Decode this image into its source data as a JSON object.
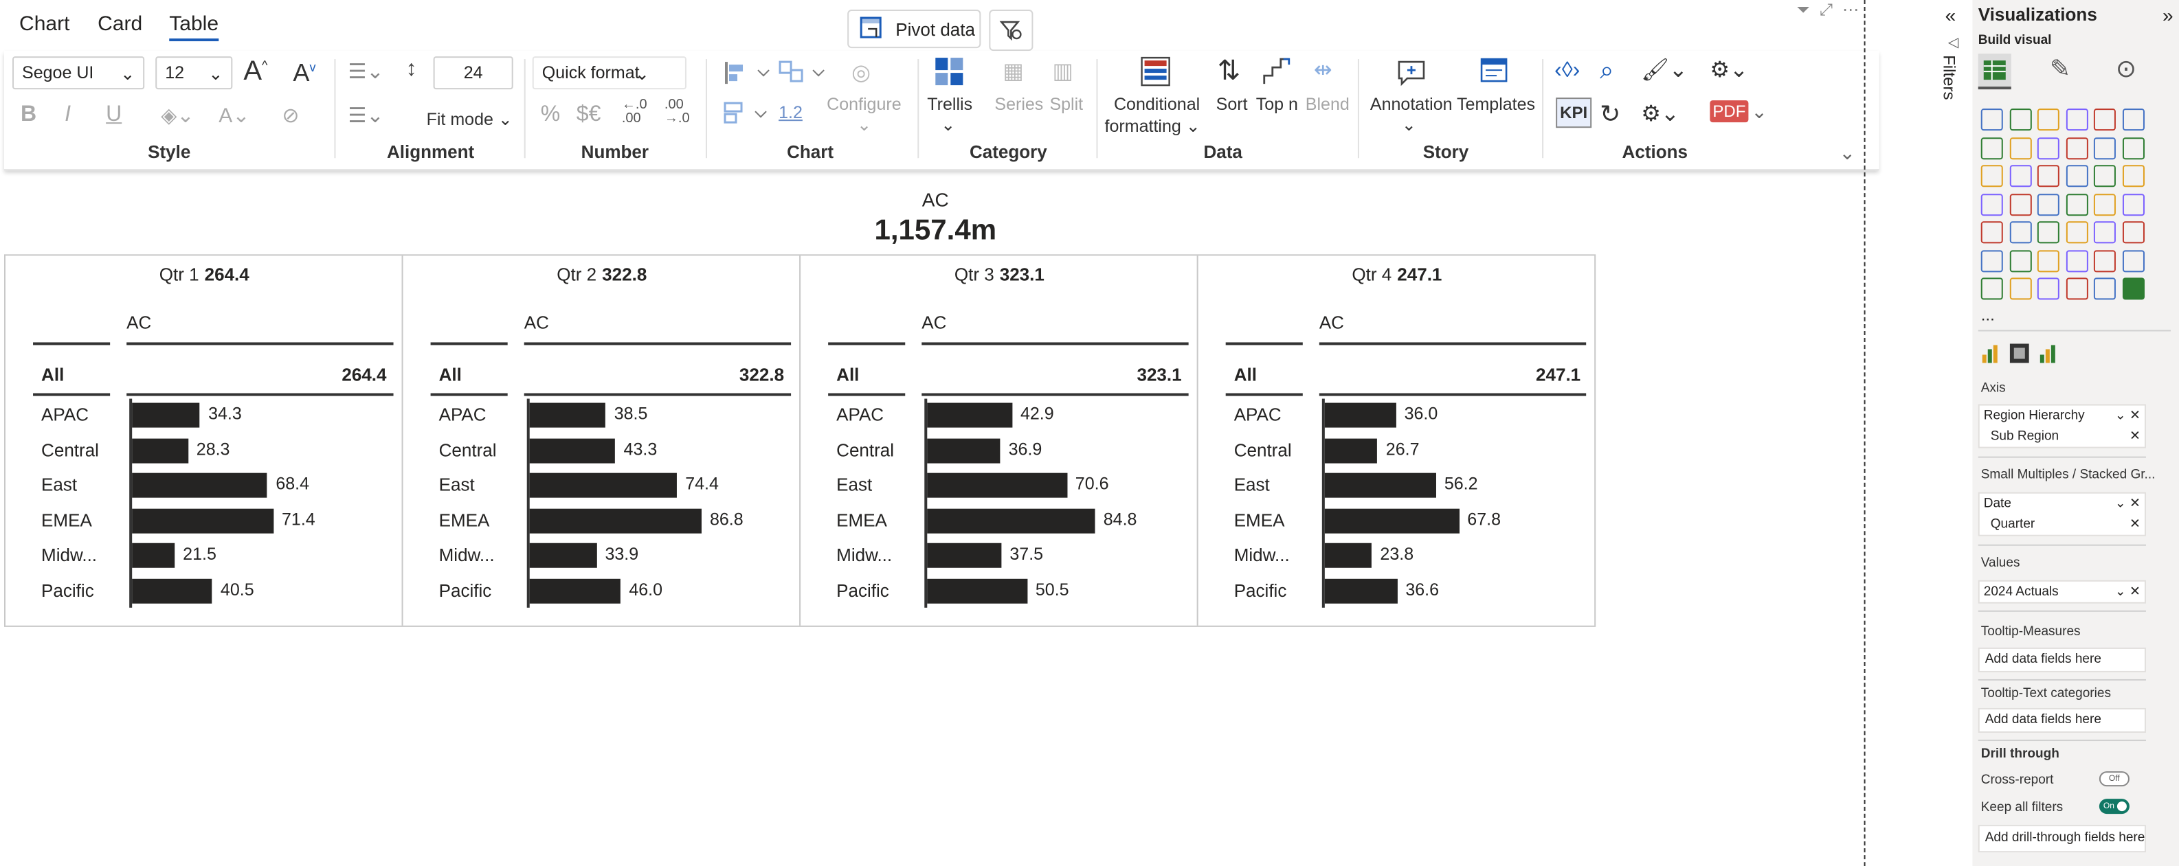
{
  "top": {
    "tabs": [
      "Chart",
      "Card",
      "Table"
    ],
    "active_tab": "Table",
    "pivot_label": "Pivot data"
  },
  "ribbon": {
    "font_family": "Segoe UI",
    "font_size": "12",
    "row_height": "24",
    "quick_format": "Quick format",
    "fit_mode": "Fit mode",
    "configure": "Configure",
    "series": "Series",
    "split": "Split",
    "trellis": "Trellis",
    "conditional_formatting": [
      "Conditional",
      "formatting"
    ],
    "sort": "Sort",
    "topn": "Top n",
    "blend": "Blend",
    "annotation": "Annotation",
    "templates": "Templates",
    "kpi": "KPI",
    "number_formats": [
      "%",
      "$€",
      "←.0 .00",
      ".00 →.0"
    ],
    "chart_scale": "1.2",
    "groups": [
      "Style",
      "Alignment",
      "Number",
      "Chart",
      "Category",
      "Data",
      "Story",
      "Actions"
    ]
  },
  "visual": {
    "measure": "AC",
    "total": "1,157.4m",
    "column_header": "AC",
    "all_label": "All",
    "panels": [
      {
        "quarter": "Qtr 1",
        "total": "264.4",
        "rows": [
          {
            "label": "APAC",
            "value": 34.3,
            "text": "34.3"
          },
          {
            "label": "Central",
            "value": 28.3,
            "text": "28.3"
          },
          {
            "label": "East",
            "value": 68.4,
            "text": "68.4"
          },
          {
            "label": "EMEA",
            "value": 71.4,
            "text": "71.4"
          },
          {
            "label": "Midw...",
            "value": 21.5,
            "text": "21.5"
          },
          {
            "label": "Pacific",
            "value": 40.5,
            "text": "40.5"
          }
        ]
      },
      {
        "quarter": "Qtr 2",
        "total": "322.8",
        "rows": [
          {
            "label": "APAC",
            "value": 38.5,
            "text": "38.5"
          },
          {
            "label": "Central",
            "value": 43.3,
            "text": "43.3"
          },
          {
            "label": "East",
            "value": 74.4,
            "text": "74.4"
          },
          {
            "label": "EMEA",
            "value": 86.8,
            "text": "86.8"
          },
          {
            "label": "Midw...",
            "value": 33.9,
            "text": "33.9"
          },
          {
            "label": "Pacific",
            "value": 46.0,
            "text": "46.0"
          }
        ]
      },
      {
        "quarter": "Qtr 3",
        "total": "323.1",
        "rows": [
          {
            "label": "APAC",
            "value": 42.9,
            "text": "42.9"
          },
          {
            "label": "Central",
            "value": 36.9,
            "text": "36.9"
          },
          {
            "label": "East",
            "value": 70.6,
            "text": "70.6"
          },
          {
            "label": "EMEA",
            "value": 84.8,
            "text": "84.8"
          },
          {
            "label": "Midw...",
            "value": 37.5,
            "text": "37.5"
          },
          {
            "label": "Pacific",
            "value": 50.5,
            "text": "50.5"
          }
        ]
      },
      {
        "quarter": "Qtr 4",
        "total": "247.1",
        "rows": [
          {
            "label": "APAC",
            "value": 36.0,
            "text": "36.0"
          },
          {
            "label": "Central",
            "value": 26.7,
            "text": "26.7"
          },
          {
            "label": "East",
            "value": 56.2,
            "text": "56.2"
          },
          {
            "label": "EMEA",
            "value": 67.8,
            "text": "67.8"
          },
          {
            "label": "Midw...",
            "value": 23.8,
            "text": "23.8"
          },
          {
            "label": "Pacific",
            "value": 36.6,
            "text": "36.6"
          }
        ]
      }
    ]
  },
  "filters_label": "Filters",
  "viz_pane": {
    "title": "Visualizations",
    "subtitle": "Build visual",
    "more": "...",
    "axis_label": "Axis",
    "axis_fields": [
      "Region Hierarchy",
      "Sub Region"
    ],
    "small_multiples_label": "Small Multiples / Stacked Gr...",
    "small_multiples_fields": [
      "Date",
      "Quarter"
    ],
    "values_label": "Values",
    "values_fields": [
      "2024 Actuals"
    ],
    "tooltip_measures_label": "Tooltip-Measures",
    "tooltip_text_label": "Tooltip-Text categories",
    "add_fields": "Add data fields here",
    "drill_through": "Drill through",
    "cross_report": "Cross-report",
    "cross_report_state": "Off",
    "keep_filters": "Keep all filters",
    "keep_filters_state": "On",
    "add_drill": "Add drill-through fields here"
  },
  "colors": {
    "accent_blue": "#1b5cb8",
    "bar": "#252423",
    "toggle_on": "#117865"
  }
}
